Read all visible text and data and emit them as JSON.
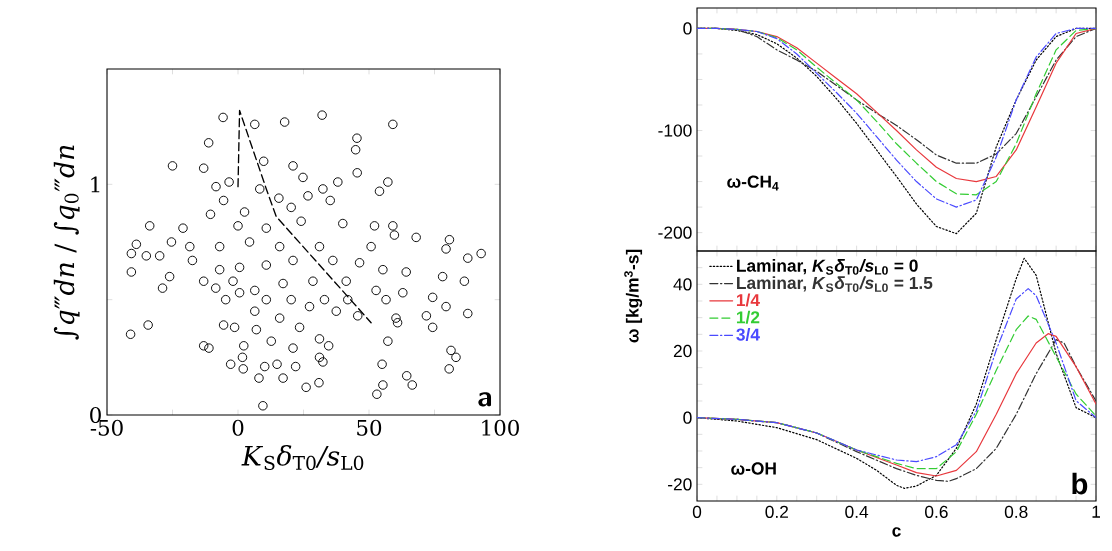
{
  "chart_data": [
    {
      "type": "scatter",
      "xlabel": "*K*$_{S}$*δ*$_{T0}$*/s*$_{L0}$",
      "ylabel": "∫*q*‴*dn* / ∫*q*$_{0}$‴*dn*",
      "xlim": [
        -50,
        100
      ],
      "ylim": [
        0,
        1.5
      ],
      "xticks": [
        -50,
        {
          "value": -25,
          "label": null
        },
        0,
        {
          "value": 25,
          "label": null
        },
        50,
        {
          "value": 75,
          "label": null
        },
        100
      ],
      "yticks": [
        0,
        {
          "value": 0.5,
          "label": null
        },
        1
      ],
      "annotations": [
        "a"
      ],
      "series": [
        {
          "type": "scatter",
          "marker": "circle",
          "color": "#000000",
          "x": [
            -5.7,
            6.4,
            17.8,
            32.1,
            59.1,
            -11.2,
            45.4,
            44.9,
            -25,
            -13.1,
            9.8,
            21,
            45.5,
            -3.4,
            -8.4,
            24.8,
            38.1,
            57.2,
            54,
            32.4,
            8.3,
            15.6,
            26.7,
            35.2,
            2.5,
            -5.5,
            -10.5,
            20.3,
            -33.7,
            -21,
            0,
            10.8,
            24.1,
            40,
            52.1,
            59.1,
            59.7,
            68,
            80.7,
            -38.8,
            -25.4,
            -18.4,
            -7,
            4.4,
            15.9,
            31.1,
            50.8,
            92.8,
            87.7,
            79.4,
            -40.7,
            -35,
            -29.9,
            -17.4,
            -7,
            0.6,
            10.8,
            21,
            36.2,
            46.4,
            55.3,
            64.2,
            78.1,
            86.4,
            -40.7,
            -26.1,
            -13.1,
            -8.5,
            -28.8,
            -1.9,
            6.4,
            17.2,
            28.6,
            41.3,
            52.7,
            62.9,
            74.3,
            -4.7,
            0.6,
            10.8,
            20.3,
            33,
            41.9,
            56.5,
            79.4,
            27.3,
            6.4,
            37.5,
            87.7,
            45.7,
            60.3,
            71.9,
            -41,
            -34.3,
            -5.5,
            -1.3,
            7,
            15.9,
            23.5,
            60.9,
            74.3,
            -13.1,
            -11.1,
            2.2,
            12.7,
            21,
            31.1,
            34.6,
            57.2,
            81.3,
            83.2,
            1.7,
            31.1,
            32.4,
            -2.8,
            2,
            10.2,
            14.9,
            22,
            55,
            80.6,
            8,
            17.2,
            30.9,
            26,
            64.4,
            66.5,
            55.3,
            53,
            9.5
          ],
          "values": [
            1.29,
            1.26,
            1.27,
            1.3,
            1.26,
            1.18,
            1.2,
            1.15,
            1.08,
            1.07,
            1.1,
            1.08,
            1.05,
            1.01,
            0.99,
            1.03,
            1.01,
            1.01,
            0.97,
            0.98,
            0.98,
            0.94,
            0.95,
            0.93,
            0.88,
            0.93,
            0.87,
            0.9,
            0.82,
            0.81,
            0.82,
            0.81,
            0.84,
            0.83,
            0.82,
            0.82,
            0.78,
            0.77,
            0.76,
            0.74,
            0.75,
            0.73,
            0.73,
            0.75,
            0.73,
            0.73,
            0.73,
            0.7,
            0.68,
            0.72,
            0.7,
            0.69,
            0.69,
            0.67,
            0.63,
            0.64,
            0.65,
            0.67,
            0.67,
            0.66,
            0.63,
            0.62,
            0.6,
            0.58,
            0.62,
            0.6,
            0.58,
            0.55,
            0.55,
            0.58,
            0.54,
            0.57,
            0.58,
            0.58,
            0.54,
            0.53,
            0.51,
            0.5,
            0.53,
            0.5,
            0.5,
            0.5,
            0.5,
            0.5,
            0.47,
            0.47,
            0.45,
            0.45,
            0.44,
            0.43,
            0.42,
            0.43,
            0.35,
            0.39,
            0.39,
            0.38,
            0.37,
            0.42,
            0.38,
            0.4,
            0.38,
            0.3,
            0.29,
            0.3,
            0.32,
            0.29,
            0.33,
            0.3,
            0.32,
            0.28,
            0.25,
            0.25,
            0.25,
            0.23,
            0.22,
            0.2,
            0.21,
            0.22,
            0.21,
            0.22,
            0.2,
            0.16,
            0.16,
            0.14,
            0.12,
            0.17,
            0.13,
            0.13,
            0.09,
            0.04
          ]
        },
        {
          "type": "line",
          "line_style": "dashed",
          "color": "#000000",
          "x": [
            0,
            0.6,
            10.8,
            14.6,
            50.8
          ],
          "values": [
            0.99,
            1.32,
            0.98,
            0.86,
            0.4
          ]
        }
      ]
    },
    {
      "type": "line",
      "annotations": [
        "ω-CH$_{4}$"
      ],
      "tick_labels": "y",
      "xlim": [
        0,
        1
      ],
      "ylim": [
        -218,
        20
      ],
      "xticks": [
        0,
        0.05,
        0.1,
        0.15,
        0.2,
        0.25,
        0.3,
        0.35,
        0.4,
        0.45,
        0.5,
        0.55,
        0.6,
        0.65,
        0.7,
        0.75,
        0.8,
        0.85,
        0.9,
        0.95,
        1
      ],
      "yticks": [
        -200,
        {
          "value": -175,
          "label": null
        },
        {
          "value": -150,
          "label": null
        },
        {
          "value": -125,
          "label": null
        },
        -100,
        {
          "value": -75,
          "label": null
        },
        {
          "value": -50,
          "label": null
        },
        {
          "value": -25,
          "label": null
        },
        0
      ],
      "x": [
        0,
        0.05,
        0.1,
        0.15,
        0.2,
        0.25,
        0.3,
        0.35,
        0.4,
        0.45,
        0.5,
        0.55,
        0.6,
        0.65,
        0.7,
        0.75,
        0.8,
        0.85,
        0.9,
        0.95,
        1
      ],
      "series": [
        {
          "line_style": "dotted",
          "color": "#000000",
          "values": [
            0,
            0,
            -2,
            -6,
            -15,
            -29,
            -47,
            -69,
            -93,
            -119,
            -145,
            -172,
            -194,
            -201,
            -181,
            -116,
            -70,
            -31,
            -8,
            0,
            0
          ]
        },
        {
          "line_style": "dashdot",
          "color": "#333333",
          "values": [
            0,
            0,
            -1,
            -8,
            -21,
            -31,
            -42,
            -56,
            -70,
            -83,
            -95,
            -109,
            -124,
            -132,
            -132,
            -123,
            -103,
            -67,
            -31,
            -8,
            0
          ]
        },
        {
          "line_style": "solid",
          "color": "#e8383d",
          "values": [
            0,
            0,
            -1,
            -3,
            -8,
            -19,
            -34,
            -49,
            -64,
            -82,
            -100,
            -119,
            -136,
            -147,
            -150,
            -145,
            -119,
            -77,
            -34,
            -5,
            0
          ]
        },
        {
          "line_style": "dashed",
          "color": "#33cc33",
          "values": [
            0,
            0,
            -1,
            -3,
            -9,
            -21,
            -38,
            -54,
            -70,
            -91,
            -113,
            -132,
            -150,
            -162,
            -163,
            -150,
            -113,
            -64,
            -21,
            -2,
            0
          ]
        },
        {
          "line_style": "dashdot",
          "color": "#4a4aff",
          "values": [
            0,
            0,
            -1,
            -3,
            -10,
            -25,
            -44,
            -63,
            -83,
            -106,
            -129,
            -150,
            -167,
            -175,
            -168,
            -126,
            -70,
            -28,
            -5,
            0,
            0
          ]
        }
      ]
    },
    {
      "type": "line",
      "xlabel": "c",
      "ylabel": "ω [kg/m$^{3}$-s]",
      "annotations": [
        "ω-OH",
        "b"
      ],
      "legend": "top left",
      "xlim": [
        0,
        1
      ],
      "ylim": [
        -25,
        50
      ],
      "xticks": [
        0,
        {
          "value": 0.05,
          "label": null
        },
        0.2,
        {
          "value": 0.1,
          "label": null
        },
        {
          "value": 0.15,
          "label": null
        },
        {
          "value": 0.25,
          "label": null
        },
        {
          "value": 0.3,
          "label": null
        },
        {
          "value": 0.35,
          "label": null
        },
        0.4,
        {
          "value": 0.45,
          "label": null
        },
        {
          "value": 0.5,
          "label": null
        },
        {
          "value": 0.55,
          "label": null
        },
        0.6,
        {
          "value": 0.65,
          "label": null
        },
        {
          "value": 0.7,
          "label": null
        },
        {
          "value": 0.75,
          "label": null
        },
        0.8,
        {
          "value": 0.85,
          "label": null
        },
        {
          "value": 0.9,
          "label": null
        },
        {
          "value": 0.95,
          "label": null
        },
        1
      ],
      "yticks": [
        -20,
        {
          "value": -15,
          "label": null
        },
        {
          "value": -10,
          "label": null
        },
        {
          "value": -5,
          "label": null
        },
        0,
        {
          "value": 5,
          "label": null
        },
        {
          "value": 10,
          "label": null
        },
        {
          "value": 15,
          "label": null
        },
        20,
        {
          "value": 25,
          "label": null
        },
        {
          "value": 30,
          "label": null
        },
        {
          "value": 35,
          "label": null
        },
        40,
        {
          "value": 45,
          "label": null
        }
      ],
      "series": [
        {
          "name": "Laminar, *K*$_{S}$*δ*$_{T0}$*/s*$_{L0}$ = 0",
          "line_style": "dotted",
          "color": "#000000",
          "x": [
            0,
            0.1,
            0.2,
            0.3,
            0.4,
            0.45,
            0.5,
            0.52,
            0.55,
            0.6,
            0.65,
            0.7,
            0.75,
            0.8,
            0.82,
            0.85,
            0.9,
            0.95,
            1
          ],
          "values": [
            0,
            -1,
            -3,
            -6.6,
            -12.2,
            -15.8,
            -20.3,
            -21.2,
            -20.5,
            -17.3,
            -9.2,
            4.1,
            23.4,
            41.7,
            47.8,
            42.7,
            19.3,
            3,
            0
          ]
        },
        {
          "name": "Laminar, *K*$_{S}$*δ*$_{T0}$*/s*$_{L0}$ = 1.5",
          "line_style": "dashdot",
          "color": "#333333",
          "x": [
            0,
            0.1,
            0.2,
            0.3,
            0.4,
            0.5,
            0.55,
            0.6,
            0.63,
            0.65,
            0.7,
            0.75,
            0.8,
            0.85,
            0.9,
            0.92,
            0.95,
            1
          ],
          "values": [
            0,
            -0.5,
            -1.5,
            -4.6,
            -10.2,
            -15.3,
            -17.3,
            -18.8,
            -19.1,
            -18.3,
            -15.3,
            -9.2,
            1,
            13.2,
            23.4,
            22.4,
            15.3,
            5
          ]
        },
        {
          "name": "1/4",
          "line_style": "solid",
          "color": "#e8383d",
          "x": [
            0,
            0.1,
            0.2,
            0.3,
            0.4,
            0.5,
            0.55,
            0.6,
            0.65,
            0.7,
            0.75,
            0.8,
            0.85,
            0.88,
            0.9,
            0.95,
            1
          ],
          "values": [
            0,
            -0.5,
            -1.5,
            -4.6,
            -9.7,
            -14.2,
            -16.5,
            -17.5,
            -15.8,
            -10.2,
            1,
            13.2,
            22.4,
            25.2,
            24.4,
            15.3,
            4.1
          ]
        },
        {
          "name": "1/2",
          "line_style": "dashed",
          "color": "#33cc33",
          "x": [
            0,
            0.1,
            0.2,
            0.3,
            0.4,
            0.5,
            0.55,
            0.6,
            0.65,
            0.7,
            0.75,
            0.8,
            0.83,
            0.85,
            0.9,
            0.95,
            1
          ],
          "values": [
            0,
            -0.5,
            -1.5,
            -4.6,
            -9.7,
            -13.7,
            -15.3,
            -15.3,
            -10.2,
            1,
            14.2,
            26.4,
            30.5,
            29.5,
            18.3,
            7.1,
            0.5
          ]
        },
        {
          "name": "3/4",
          "line_style": "dashdot",
          "color": "#4a4aff",
          "x": [
            0,
            0.1,
            0.2,
            0.3,
            0.4,
            0.5,
            0.55,
            0.6,
            0.65,
            0.7,
            0.75,
            0.8,
            0.83,
            0.85,
            0.9,
            0.95,
            1
          ],
          "values": [
            0,
            -0.5,
            -1.5,
            -4.6,
            -9.7,
            -12.7,
            -13.2,
            -11.7,
            -8.1,
            2,
            20.3,
            35.6,
            38.7,
            36.6,
            22.4,
            5.1,
            0
          ]
        }
      ]
    }
  ]
}
